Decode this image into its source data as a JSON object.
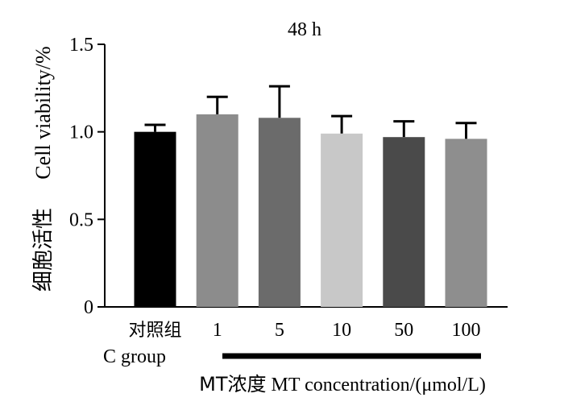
{
  "chart_data": {
    "type": "bar",
    "title": "48 h",
    "ylabel": "Cell viability/%",
    "ylabel_cn": "细胞活性",
    "xlabel": "MT concentration/(μmol/L)",
    "xlabel_cn": "MT浓度",
    "control_label": "C group",
    "categories": [
      "对照组",
      "1",
      "5",
      "10",
      "50",
      "100"
    ],
    "values": [
      1.0,
      1.1,
      1.08,
      0.99,
      0.97,
      0.96
    ],
    "errors": [
      0.04,
      0.1,
      0.18,
      0.1,
      0.09,
      0.09
    ],
    "bar_colors": [
      "#000000",
      "#8c8c8c",
      "#6b6b6b",
      "#c8c8c8",
      "#4a4a4a",
      "#8e8e8e"
    ],
    "ylim": [
      0,
      1.5
    ],
    "yticks": [
      0,
      0.5,
      1.0,
      1.5
    ],
    "ytick_labels": [
      "0",
      "0.5",
      "1.0",
      "1.5"
    ],
    "grid": false,
    "legend": "none"
  }
}
